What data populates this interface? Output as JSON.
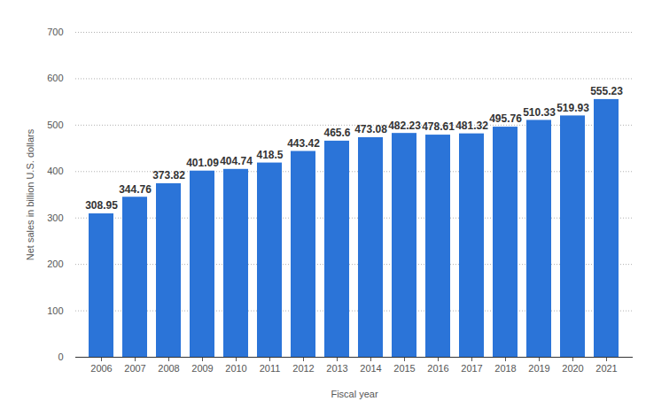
{
  "chart_data": {
    "type": "bar",
    "x_label": "Fiscal year",
    "y_label": "Net sales in billion U.S. dollars",
    "categories": [
      "2006",
      "2007",
      "2008",
      "2009",
      "2010",
      "2011",
      "2012",
      "2013",
      "2014",
      "2015",
      "2016",
      "2017",
      "2018",
      "2019",
      "2020",
      "2021"
    ],
    "values": [
      308.95,
      344.76,
      373.82,
      401.09,
      404.74,
      418.5,
      443.42,
      465.6,
      473.08,
      482.23,
      478.61,
      481.32,
      495.76,
      510.33,
      519.93,
      555.23
    ],
    "color": "#2b74d8",
    "ylim": [
      0,
      700
    ],
    "yticks": [
      0,
      100,
      200,
      300,
      400,
      500,
      600,
      700
    ],
    "grid": true,
    "data_labels": true
  }
}
